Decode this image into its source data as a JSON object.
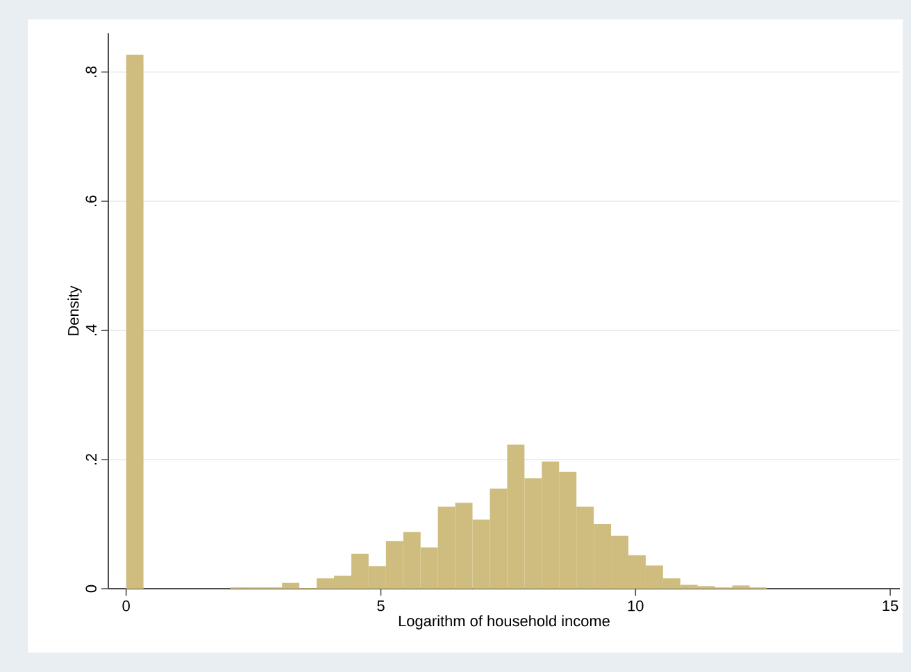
{
  "chart_data": {
    "type": "histogram",
    "xlabel": "Logarithm of household income",
    "ylabel": "Density",
    "bins": [
      0,
      0.34,
      0.68,
      1.02,
      1.36,
      1.7,
      2.04,
      2.38,
      2.72,
      3.06,
      3.4,
      3.74,
      4.08,
      4.42,
      4.76,
      5.1,
      5.44,
      5.78,
      6.12,
      6.46,
      6.8,
      7.14,
      7.48,
      7.82,
      8.16,
      8.5,
      8.84,
      9.18,
      9.52,
      9.86,
      10.2,
      10.54,
      10.88,
      11.22,
      11.56,
      11.9,
      12.24,
      12.58
    ],
    "values": [
      0.827,
      0,
      0,
      0,
      0,
      0,
      0.002,
      0.002,
      0.002,
      0.009,
      0.001,
      0.016,
      0.02,
      0.054,
      0.035,
      0.074,
      0.088,
      0.064,
      0.127,
      0.133,
      0.107,
      0.155,
      0.223,
      0.171,
      0.197,
      0.181,
      0.127,
      0.1,
      0.082,
      0.052,
      0.036,
      0.016,
      0.006,
      0.004,
      0.002,
      0.005,
      0.002
    ],
    "color": "#cfbd7f",
    "xlim": [
      -0.35,
      15.19
    ],
    "ylim": [
      0,
      0.86
    ],
    "xticks": [
      0,
      5,
      10,
      15
    ],
    "yticks": [
      0,
      {
        "value": 0.2,
        "label": ".2"
      },
      {
        "value": 0.4,
        "label": ".4"
      },
      {
        "value": 0.6,
        "label": ".6"
      },
      {
        "value": 0.8,
        "label": ".8"
      }
    ],
    "grid": "y"
  }
}
